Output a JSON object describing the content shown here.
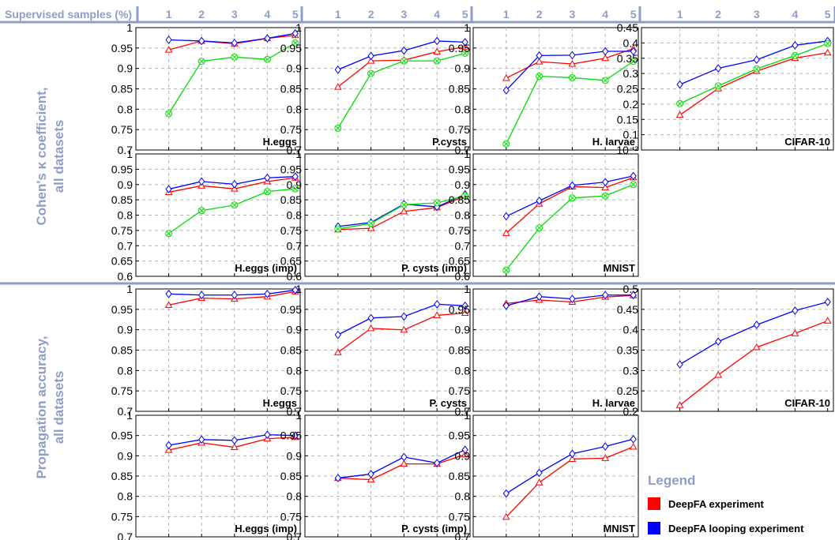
{
  "header": {
    "label": "Supervised samples (%)",
    "x_ticks": [
      "1",
      "2",
      "3",
      "4",
      "5"
    ]
  },
  "row_groups": [
    {
      "label_line1": "Cohen's κ coefficient,",
      "label_line2": "all datasets"
    },
    {
      "label_line1": "Propagation accuracy,",
      "label_line2": "all datasets"
    }
  ],
  "legend": {
    "title": "Legend",
    "items": [
      {
        "label": "DeepFA experiment",
        "color": "#ff0000"
      },
      {
        "label": "DeepFA looping experiment",
        "color": "#0000ff"
      }
    ]
  },
  "chart_data": [
    {
      "type": "line",
      "group": "kappa",
      "title": "H.eggs",
      "x": [
        1,
        2,
        3,
        4,
        5
      ],
      "ylim": [
        0.68,
        1.0
      ],
      "yticks": [
        "0.7",
        "0.75",
        "0.8",
        "0.85",
        "0.9",
        "0.95",
        "1"
      ],
      "series": [
        {
          "color": "#ff0000",
          "marker": "triangle",
          "values": [
            0.942,
            0.965,
            0.958,
            0.972,
            0.98
          ]
        },
        {
          "color": "#0000ff",
          "marker": "diamond",
          "values": [
            0.968,
            0.965,
            0.96,
            0.972,
            0.985
          ]
        },
        {
          "color": "#00dd00",
          "marker": "circle-x",
          "values": [
            0.775,
            0.912,
            0.923,
            0.917,
            0.96
          ]
        }
      ]
    },
    {
      "type": "line",
      "group": "kappa",
      "title": "P.cysts",
      "x": [
        1,
        2,
        3,
        4,
        5
      ],
      "ylim": [
        0.68,
        1.0
      ],
      "yticks": [
        "0.7",
        "0.75",
        "0.8",
        "0.85",
        "0.9",
        "0.95",
        "1"
      ],
      "series": [
        {
          "color": "#ff0000",
          "marker": "triangle",
          "values": [
            0.845,
            0.913,
            0.915,
            0.937,
            0.95
          ]
        },
        {
          "color": "#0000ff",
          "marker": "diamond",
          "values": [
            0.89,
            0.926,
            0.94,
            0.965,
            0.962
          ]
        },
        {
          "color": "#00dd00",
          "marker": "circle-x",
          "values": [
            0.737,
            0.88,
            0.913,
            0.913,
            0.933
          ]
        }
      ]
    },
    {
      "type": "line",
      "group": "kappa",
      "title": "H. larvae",
      "x": [
        1,
        2,
        3,
        4,
        5
      ],
      "ylim": [
        0.68,
        1.0
      ],
      "yticks": [
        "0.7",
        "0.75",
        "0.8",
        "0.85",
        "0.9",
        "0.95",
        "1"
      ],
      "series": [
        {
          "color": "#ff0000",
          "marker": "triangle",
          "values": [
            0.868,
            0.911,
            0.905,
            0.92,
            0.945
          ]
        },
        {
          "color": "#0000ff",
          "marker": "diamond",
          "values": [
            0.836,
            0.927,
            0.928,
            0.938,
            0.938
          ]
        },
        {
          "color": "#00dd00",
          "marker": "circle-x",
          "values": [
            0.696,
            0.873,
            0.869,
            0.862,
            0.912
          ]
        }
      ]
    },
    {
      "type": "line",
      "group": "kappa",
      "title": "CIFAR-10",
      "x": [
        1,
        2,
        3,
        4,
        5
      ],
      "ylim": [
        0.02,
        0.45
      ],
      "yticks": [
        "10⁻²",
        "0.1",
        "0.15",
        "0.2",
        "0.25",
        "0.3",
        "0.35",
        "0.4",
        "0.45"
      ],
      "series": [
        {
          "color": "#ff0000",
          "marker": "triangle",
          "values": [
            0.143,
            0.236,
            0.297,
            0.343,
            0.362
          ]
        },
        {
          "color": "#0000ff",
          "marker": "diamond",
          "values": [
            0.25,
            0.307,
            0.337,
            0.388,
            0.403
          ]
        },
        {
          "color": "#00dd00",
          "marker": "circle-x",
          "values": [
            0.183,
            0.245,
            0.305,
            0.352,
            0.394
          ]
        }
      ]
    },
    {
      "type": "line",
      "group": "kappa",
      "title": "H.eggs (imp)",
      "x": [
        1,
        2,
        3,
        4,
        5
      ],
      "ylim": [
        0.6,
        1.0
      ],
      "yticks": [
        "0.6",
        "0.65",
        "0.7",
        "0.75",
        "0.8",
        "0.85",
        "0.9",
        "0.95",
        "1"
      ],
      "series": [
        {
          "color": "#ff0000",
          "marker": "triangle",
          "values": [
            0.875,
            0.896,
            0.886,
            0.91,
            0.922
          ]
        },
        {
          "color": "#0000ff",
          "marker": "diamond",
          "values": [
            0.885,
            0.91,
            0.901,
            0.922,
            0.926
          ]
        },
        {
          "color": "#00dd00",
          "marker": "circle-x",
          "values": [
            0.74,
            0.815,
            0.833,
            0.877,
            0.886
          ]
        }
      ]
    },
    {
      "type": "line",
      "group": "kappa",
      "title": "P. cysts (imp)",
      "x": [
        1,
        2,
        3,
        4,
        5
      ],
      "ylim": [
        0.6,
        1.0
      ],
      "yticks": [
        "0.6",
        "0.65",
        "0.7",
        "0.75",
        "0.8",
        "0.85",
        "0.9",
        "0.95",
        "1"
      ],
      "series": [
        {
          "color": "#ff0000",
          "marker": "triangle",
          "values": [
            0.753,
            0.757,
            0.812,
            0.825,
            0.862
          ]
        },
        {
          "color": "#0000ff",
          "marker": "diamond",
          "values": [
            0.763,
            0.776,
            0.836,
            0.827,
            0.868
          ]
        },
        {
          "color": "#00dd00",
          "marker": "circle-x",
          "values": [
            0.755,
            0.773,
            0.834,
            0.84,
            0.863
          ]
        }
      ]
    },
    {
      "type": "line",
      "group": "kappa",
      "title": "MNIST",
      "x": [
        1,
        2,
        3,
        4,
        5
      ],
      "ylim": [
        0.6,
        1.0
      ],
      "yticks": [
        "0.6",
        "0.65",
        "0.7",
        "0.75",
        "0.8",
        "0.85",
        "0.9",
        "0.95",
        "1"
      ],
      "series": [
        {
          "color": "#ff0000",
          "marker": "triangle",
          "values": [
            0.741,
            0.837,
            0.893,
            0.89,
            0.923
          ]
        },
        {
          "color": "#0000ff",
          "marker": "diamond",
          "values": [
            0.796,
            0.847,
            0.897,
            0.908,
            0.928
          ]
        },
        {
          "color": "#00dd00",
          "marker": "circle-x",
          "values": [
            0.62,
            0.758,
            0.856,
            0.863,
            0.9
          ]
        }
      ]
    },
    {
      "type": "line",
      "group": "accuracy",
      "title": "H.eggs",
      "x": [
        1,
        2,
        3,
        4,
        5
      ],
      "ylim": [
        0.68,
        1.0
      ],
      "yticks": [
        "0.7",
        "0.75",
        "0.8",
        "0.85",
        "0.9",
        "0.95",
        "1"
      ],
      "series": [
        {
          "color": "#ff0000",
          "marker": "triangle",
          "values": [
            0.958,
            0.976,
            0.974,
            0.98,
            0.993
          ]
        },
        {
          "color": "#0000ff",
          "marker": "diamond",
          "values": [
            0.987,
            0.984,
            0.984,
            0.987,
            0.997
          ]
        }
      ]
    },
    {
      "type": "line",
      "group": "accuracy",
      "title": "P. cysts",
      "x": [
        1,
        2,
        3,
        4,
        5
      ],
      "ylim": [
        0.68,
        1.0
      ],
      "yticks": [
        "0.7",
        "0.75",
        "0.8",
        "0.85",
        "0.9",
        "0.95",
        "1"
      ],
      "series": [
        {
          "color": "#ff0000",
          "marker": "triangle",
          "values": [
            0.834,
            0.897,
            0.893,
            0.931,
            0.937
          ]
        },
        {
          "color": "#0000ff",
          "marker": "diamond",
          "values": [
            0.88,
            0.924,
            0.928,
            0.96,
            0.956
          ]
        }
      ]
    },
    {
      "type": "line",
      "group": "accuracy",
      "title": "H. larvae",
      "x": [
        1,
        2,
        3,
        4,
        5
      ],
      "ylim": [
        0.68,
        1.0
      ],
      "yticks": [
        "0.7",
        "0.75",
        "0.8",
        "0.85",
        "0.9",
        "0.95",
        "1"
      ],
      "series": [
        {
          "color": "#ff0000",
          "marker": "triangle",
          "values": [
            0.962,
            0.971,
            0.966,
            0.979,
            0.983
          ]
        },
        {
          "color": "#0000ff",
          "marker": "diamond",
          "values": [
            0.956,
            0.98,
            0.974,
            0.984,
            0.984
          ]
        }
      ]
    },
    {
      "type": "line",
      "group": "accuracy",
      "title": "CIFAR-10",
      "x": [
        1,
        2,
        3,
        4,
        5
      ],
      "ylim": [
        0.2,
        0.5
      ],
      "yticks": [
        "0.2",
        "0.25",
        "0.3",
        "0.35",
        "0.4",
        "0.45",
        "0.5"
      ],
      "series": [
        {
          "color": "#ff0000",
          "marker": "triangle",
          "values": [
            0.215,
            0.289,
            0.357,
            0.391,
            0.422
          ]
        },
        {
          "color": "#0000ff",
          "marker": "diamond",
          "values": [
            0.315,
            0.371,
            0.412,
            0.447,
            0.468
          ]
        }
      ]
    },
    {
      "type": "line",
      "group": "accuracy",
      "title": "H.eggs (imp)",
      "x": [
        1,
        2,
        3,
        4,
        5
      ],
      "ylim": [
        0.7,
        1.0
      ],
      "yticks": [
        "0.7",
        "0.75",
        "0.8",
        "0.85",
        "0.9",
        "0.95",
        "1"
      ],
      "series": [
        {
          "color": "#ff0000",
          "marker": "triangle",
          "values": [
            0.914,
            0.932,
            0.921,
            0.942,
            0.946
          ]
        },
        {
          "color": "#0000ff",
          "marker": "diamond",
          "values": [
            0.926,
            0.94,
            0.938,
            0.952,
            0.95
          ]
        }
      ]
    },
    {
      "type": "line",
      "group": "accuracy",
      "title": "P. cysts (imp)",
      "x": [
        1,
        2,
        3,
        4,
        5
      ],
      "ylim": [
        0.7,
        1.0
      ],
      "yticks": [
        "0.7",
        "0.75",
        "0.8",
        "0.85",
        "0.9",
        "0.95",
        "1"
      ],
      "series": [
        {
          "color": "#ff0000",
          "marker": "triangle",
          "values": [
            0.845,
            0.841,
            0.88,
            0.88,
            0.903
          ]
        },
        {
          "color": "#0000ff",
          "marker": "diamond",
          "values": [
            0.845,
            0.855,
            0.897,
            0.882,
            0.915
          ]
        }
      ]
    },
    {
      "type": "line",
      "group": "accuracy",
      "title": "MNIST",
      "x": [
        1,
        2,
        3,
        4,
        5
      ],
      "ylim": [
        0.7,
        1.0
      ],
      "yticks": [
        "0.7",
        "0.75",
        "0.8",
        "0.85",
        "0.9",
        "0.95",
        "1"
      ],
      "series": [
        {
          "color": "#ff0000",
          "marker": "triangle",
          "values": [
            0.749,
            0.834,
            0.892,
            0.894,
            0.922
          ]
        },
        {
          "color": "#0000ff",
          "marker": "diamond",
          "values": [
            0.807,
            0.858,
            0.905,
            0.923,
            0.941
          ]
        }
      ]
    }
  ]
}
